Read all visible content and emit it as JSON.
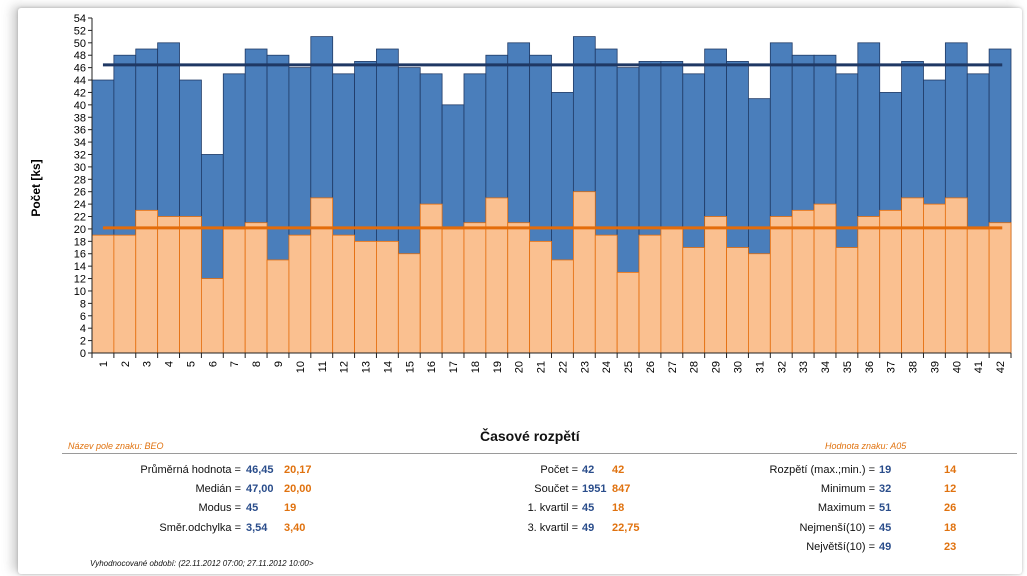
{
  "chart_data": {
    "type": "bar",
    "categories": [
      "1",
      "2",
      "3",
      "4",
      "5",
      "6",
      "7",
      "8",
      "9",
      "10",
      "11",
      "12",
      "13",
      "14",
      "15",
      "16",
      "17",
      "18",
      "19",
      "20",
      "21",
      "22",
      "23",
      "24",
      "25",
      "26",
      "27",
      "28",
      "29",
      "30",
      "31",
      "32",
      "33",
      "34",
      "35",
      "36",
      "37",
      "38",
      "39",
      "40",
      "41",
      "42"
    ],
    "series": [
      {
        "values": [
          44,
          48,
          49,
          50,
          44,
          32,
          45,
          49,
          48,
          46,
          51,
          45,
          47,
          49,
          46,
          45,
          40,
          45,
          48,
          50,
          48,
          42,
          51,
          49,
          46,
          47,
          47,
          45,
          49,
          47,
          41,
          50,
          48,
          48,
          45,
          50,
          42,
          47,
          44,
          50,
          45,
          49
        ]
      },
      {
        "values": [
          19,
          19,
          23,
          22,
          22,
          12,
          20,
          21,
          15,
          19,
          25,
          19,
          18,
          18,
          16,
          24,
          20,
          21,
          25,
          21,
          18,
          15,
          26,
          19,
          13,
          19,
          20,
          17,
          22,
          17,
          16,
          22,
          23,
          24,
          17,
          22,
          23,
          25,
          24,
          25,
          20,
          21
        ]
      }
    ],
    "reference_lines": [
      46.45,
      20.17
    ],
    "ylabel": "Počet [ks]",
    "ylim": [
      0,
      54
    ],
    "ytick_step": 2,
    "grid": false,
    "colors": {
      "series1": "#4a7ebb",
      "series1_edge": "#1f3a66",
      "series2": "#fac090",
      "series2_edge": "#e46c0a",
      "mean1_line": "#1f3864",
      "mean2_line": "#e46c0a"
    }
  },
  "stats": {
    "title": "Časové rozpětí",
    "field_name": "Název pole znaku:  BEO",
    "field_value": "Hodnota znaku:  A05",
    "left": [
      {
        "label": "Průměrná hodnota =",
        "v1": "46,45",
        "v2": "20,17"
      },
      {
        "label": "Medián =",
        "v1": "47,00",
        "v2": "20,00"
      },
      {
        "label": "Modus =",
        "v1": "45",
        "v2": "19"
      },
      {
        "label": "Směr.odchylka =",
        "v1": "3,54",
        "v2": "3,40"
      }
    ],
    "middle": [
      {
        "label": "Počet =",
        "v1": "42",
        "v2": "42"
      },
      {
        "label": "Součet =",
        "v1": "1951",
        "v2": "847"
      },
      {
        "label": "1. kvartil =",
        "v1": "45",
        "v2": "18"
      },
      {
        "label": "3. kvartil =",
        "v1": "49",
        "v2": "22,75"
      }
    ],
    "right": [
      {
        "label": "Rozpětí (max.;min.) =",
        "v1": "19",
        "v2": "14"
      },
      {
        "label": "Minimum  =",
        "v1": "32",
        "v2": "12"
      },
      {
        "label": "Maximum  =",
        "v1": "51",
        "v2": "26"
      },
      {
        "label": "Nejmenší(10) =",
        "v1": "45",
        "v2": "18"
      },
      {
        "label": "Největší(10) =",
        "v1": "49",
        "v2": "23"
      }
    ],
    "period": "Vyhodnocované období:  (22.11.2012 07:00; 27.11.2012 10:00>"
  }
}
